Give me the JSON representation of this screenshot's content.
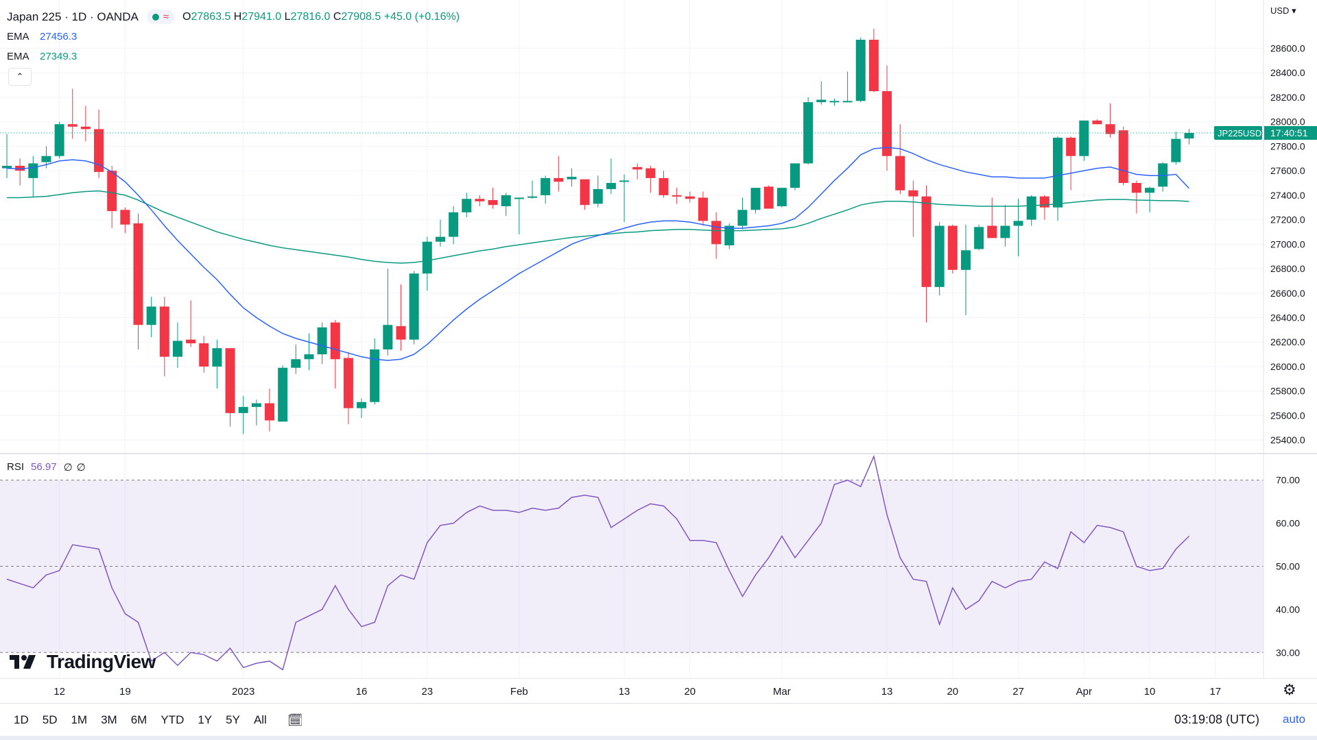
{
  "header": {
    "symbol": "Japan 225 · 1D · OANDA",
    "ohlc": {
      "o_label": "O",
      "o": "27863.5",
      "h_label": "H",
      "h": "27941.0",
      "l_label": "L",
      "l": "27816.0",
      "c_label": "C",
      "c": "27908.5",
      "change": "+45.0 (+0.16%)"
    },
    "status_color": "#089981"
  },
  "indicators": {
    "ema1": {
      "label": "EMA",
      "value": "27456.3",
      "color": "#2962ff"
    },
    "ema2": {
      "label": "EMA",
      "value": "27349.3",
      "color": "#089981"
    },
    "rsi": {
      "label": "RSI",
      "value": "56.97",
      "extra1": "∅",
      "extra2": "∅",
      "color": "#7e57c2"
    }
  },
  "price_scale": {
    "currency": "USD"
  },
  "symbol_tag": {
    "ticker": "JP225USD",
    "countdown": "17:40:51"
  },
  "brand": {
    "name": "TradingView"
  },
  "toolbar": {
    "timeframes": [
      "1D",
      "5D",
      "1M",
      "3M",
      "6M",
      "YTD",
      "1Y",
      "5Y",
      "All"
    ],
    "clock": "03:19:08 (UTC)",
    "auto": "auto"
  },
  "chart_data": {
    "type": "candlestick",
    "ylim": [
      25300,
      28950
    ],
    "yticks": [
      25400,
      25600,
      25800,
      26000,
      26200,
      26400,
      26600,
      26800,
      27000,
      27200,
      27400,
      27600,
      27800,
      28000,
      28200,
      28400,
      28600
    ],
    "ytick_labels": [
      "25400.0",
      "25600.0",
      "25800.0",
      "26000.0",
      "26200.0",
      "26400.0",
      "26600.0",
      "26800.0",
      "27000.0",
      "27200.0",
      "27400.0",
      "27600.0",
      "27800.0",
      "28000.0",
      "28200.0",
      "28400.0",
      "28600.0"
    ],
    "current_price": 27908.5,
    "colors": {
      "up": "#089981",
      "down": "#f23645",
      "ema_fast": "#2962ff",
      "ema_slow": "#089981",
      "rsi": "#7e57c2"
    },
    "x_labels": [
      {
        "i": 4,
        "text": "12"
      },
      {
        "i": 9,
        "text": "19"
      },
      {
        "i": 18,
        "text": "2023"
      },
      {
        "i": 27,
        "text": "16"
      },
      {
        "i": 32,
        "text": "23"
      },
      {
        "i": 39,
        "text": "Feb"
      },
      {
        "i": 47,
        "text": "13"
      },
      {
        "i": 52,
        "text": "20"
      },
      {
        "i": 59,
        "text": "Mar"
      },
      {
        "i": 67,
        "text": "13"
      },
      {
        "i": 72,
        "text": "20"
      },
      {
        "i": 77,
        "text": "27"
      },
      {
        "i": 82,
        "text": "Apr"
      },
      {
        "i": 87,
        "text": "10"
      },
      {
        "i": 92,
        "text": "17"
      }
    ],
    "candles": [
      {
        "o": 27620,
        "h": 27900,
        "l": 27540,
        "c": 27640
      },
      {
        "o": 27640,
        "h": 27700,
        "l": 27480,
        "c": 27600
      },
      {
        "o": 27540,
        "h": 27720,
        "l": 27380,
        "c": 27660
      },
      {
        "o": 27670,
        "h": 27800,
        "l": 27620,
        "c": 27720
      },
      {
        "o": 27720,
        "h": 28000,
        "l": 27700,
        "c": 27980
      },
      {
        "o": 27980,
        "h": 28270,
        "l": 27860,
        "c": 27960
      },
      {
        "o": 27960,
        "h": 28130,
        "l": 27840,
        "c": 27940
      },
      {
        "o": 27940,
        "h": 28100,
        "l": 27540,
        "c": 27590
      },
      {
        "o": 27600,
        "h": 27640,
        "l": 27130,
        "c": 27270
      },
      {
        "o": 27280,
        "h": 27300,
        "l": 27090,
        "c": 27160
      },
      {
        "o": 27170,
        "h": 27250,
        "l": 26140,
        "c": 26340
      },
      {
        "o": 26340,
        "h": 26570,
        "l": 26240,
        "c": 26490
      },
      {
        "o": 26490,
        "h": 26570,
        "l": 25920,
        "c": 26080
      },
      {
        "o": 26080,
        "h": 26360,
        "l": 25990,
        "c": 26210
      },
      {
        "o": 26220,
        "h": 26540,
        "l": 26160,
        "c": 26190
      },
      {
        "o": 26190,
        "h": 26250,
        "l": 25950,
        "c": 26000
      },
      {
        "o": 26000,
        "h": 26220,
        "l": 25820,
        "c": 26150
      },
      {
        "o": 26150,
        "h": 26150,
        "l": 25510,
        "c": 25620
      },
      {
        "o": 25620,
        "h": 25760,
        "l": 25450,
        "c": 25670
      },
      {
        "o": 25670,
        "h": 25730,
        "l": 25520,
        "c": 25700
      },
      {
        "o": 25700,
        "h": 25820,
        "l": 25470,
        "c": 25560
      },
      {
        "o": 25550,
        "h": 26010,
        "l": 25550,
        "c": 25990
      },
      {
        "o": 25990,
        "h": 26180,
        "l": 25940,
        "c": 26060
      },
      {
        "o": 26060,
        "h": 26270,
        "l": 25970,
        "c": 26100
      },
      {
        "o": 26100,
        "h": 26360,
        "l": 26020,
        "c": 26320
      },
      {
        "o": 26360,
        "h": 26380,
        "l": 25820,
        "c": 26060
      },
      {
        "o": 26070,
        "h": 26120,
        "l": 25530,
        "c": 25660
      },
      {
        "o": 25660,
        "h": 25740,
        "l": 25580,
        "c": 25710
      },
      {
        "o": 25710,
        "h": 26230,
        "l": 25690,
        "c": 26140
      },
      {
        "o": 26140,
        "h": 26800,
        "l": 26090,
        "c": 26340
      },
      {
        "o": 26330,
        "h": 26670,
        "l": 26130,
        "c": 26220
      },
      {
        "o": 26220,
        "h": 26780,
        "l": 26180,
        "c": 26760
      },
      {
        "o": 26760,
        "h": 27060,
        "l": 26620,
        "c": 27020
      },
      {
        "o": 27020,
        "h": 27200,
        "l": 26980,
        "c": 27060
      },
      {
        "o": 27060,
        "h": 27310,
        "l": 27000,
        "c": 27260
      },
      {
        "o": 27260,
        "h": 27420,
        "l": 27220,
        "c": 27370
      },
      {
        "o": 27370,
        "h": 27400,
        "l": 27310,
        "c": 27350
      },
      {
        "o": 27360,
        "h": 27460,
        "l": 27290,
        "c": 27320
      },
      {
        "o": 27310,
        "h": 27420,
        "l": 27230,
        "c": 27400
      },
      {
        "o": 27380,
        "h": 27380,
        "l": 27080,
        "c": 27380
      },
      {
        "o": 27380,
        "h": 27520,
        "l": 27370,
        "c": 27390
      },
      {
        "o": 27400,
        "h": 27560,
        "l": 27330,
        "c": 27540
      },
      {
        "o": 27540,
        "h": 27720,
        "l": 27430,
        "c": 27510
      },
      {
        "o": 27530,
        "h": 27620,
        "l": 27470,
        "c": 27550
      },
      {
        "o": 27530,
        "h": 27530,
        "l": 27280,
        "c": 27320
      },
      {
        "o": 27330,
        "h": 27560,
        "l": 27300,
        "c": 27450
      },
      {
        "o": 27450,
        "h": 27700,
        "l": 27410,
        "c": 27500
      },
      {
        "o": 27520,
        "h": 27570,
        "l": 27180,
        "c": 27520
      },
      {
        "o": 27630,
        "h": 27660,
        "l": 27530,
        "c": 27610
      },
      {
        "o": 27620,
        "h": 27640,
        "l": 27420,
        "c": 27540
      },
      {
        "o": 27540,
        "h": 27600,
        "l": 27380,
        "c": 27400
      },
      {
        "o": 27400,
        "h": 27460,
        "l": 27330,
        "c": 27390
      },
      {
        "o": 27390,
        "h": 27430,
        "l": 27340,
        "c": 27370
      },
      {
        "o": 27380,
        "h": 27430,
        "l": 27150,
        "c": 27190
      },
      {
        "o": 27190,
        "h": 27260,
        "l": 26880,
        "c": 27000
      },
      {
        "o": 26990,
        "h": 27170,
        "l": 26960,
        "c": 27150
      },
      {
        "o": 27150,
        "h": 27380,
        "l": 27120,
        "c": 27280
      },
      {
        "o": 27280,
        "h": 27460,
        "l": 27250,
        "c": 27460
      },
      {
        "o": 27470,
        "h": 27480,
        "l": 27290,
        "c": 27290
      },
      {
        "o": 27310,
        "h": 27460,
        "l": 27300,
        "c": 27460
      },
      {
        "o": 27460,
        "h": 27660,
        "l": 27440,
        "c": 27660
      },
      {
        "o": 27660,
        "h": 28200,
        "l": 27650,
        "c": 28160
      },
      {
        "o": 28160,
        "h": 28330,
        "l": 28140,
        "c": 28180
      },
      {
        "o": 28170,
        "h": 28190,
        "l": 28130,
        "c": 28170
      },
      {
        "o": 28170,
        "h": 28410,
        "l": 28160,
        "c": 28170
      },
      {
        "o": 28170,
        "h": 28690,
        "l": 28160,
        "c": 28670
      },
      {
        "o": 28670,
        "h": 28760,
        "l": 28240,
        "c": 28250
      },
      {
        "o": 28250,
        "h": 28460,
        "l": 27600,
        "c": 27720
      },
      {
        "o": 27720,
        "h": 27980,
        "l": 27410,
        "c": 27440
      },
      {
        "o": 27440,
        "h": 27520,
        "l": 27060,
        "c": 27390
      },
      {
        "o": 27390,
        "h": 27480,
        "l": 26360,
        "c": 26650
      },
      {
        "o": 26650,
        "h": 27180,
        "l": 26580,
        "c": 27150
      },
      {
        "o": 27150,
        "h": 27160,
        "l": 26760,
        "c": 26790
      },
      {
        "o": 26790,
        "h": 27160,
        "l": 26420,
        "c": 26950
      },
      {
        "o": 26960,
        "h": 27160,
        "l": 26950,
        "c": 27140
      },
      {
        "o": 27150,
        "h": 27380,
        "l": 27080,
        "c": 27050
      },
      {
        "o": 27050,
        "h": 27320,
        "l": 26980,
        "c": 27150
      },
      {
        "o": 27150,
        "h": 27370,
        "l": 26900,
        "c": 27190
      },
      {
        "o": 27200,
        "h": 27400,
        "l": 27150,
        "c": 27390
      },
      {
        "o": 27390,
        "h": 27400,
        "l": 27200,
        "c": 27300
      },
      {
        "o": 27300,
        "h": 27880,
        "l": 27190,
        "c": 27870
      },
      {
        "o": 27870,
        "h": 27880,
        "l": 27440,
        "c": 27720
      },
      {
        "o": 27720,
        "h": 28010,
        "l": 27680,
        "c": 28010
      },
      {
        "o": 28010,
        "h": 28020,
        "l": 27980,
        "c": 27980
      },
      {
        "o": 27980,
        "h": 28150,
        "l": 27870,
        "c": 27900
      },
      {
        "o": 27930,
        "h": 27960,
        "l": 27480,
        "c": 27500
      },
      {
        "o": 27500,
        "h": 27520,
        "l": 27250,
        "c": 27420
      },
      {
        "o": 27420,
        "h": 27470,
        "l": 27260,
        "c": 27460
      },
      {
        "o": 27470,
        "h": 27670,
        "l": 27430,
        "c": 27660
      },
      {
        "o": 27670,
        "h": 27920,
        "l": 27650,
        "c": 27860
      },
      {
        "o": 27863.5,
        "h": 27941,
        "l": 27816,
        "c": 27908.5
      }
    ],
    "ema_fast": [
      27620,
      27615,
      27625,
      27650,
      27680,
      27690,
      27680,
      27650,
      27590,
      27510,
      27400,
      27280,
      27150,
      27030,
      26920,
      26810,
      26710,
      26590,
      26480,
      26400,
      26330,
      26270,
      26230,
      26200,
      26170,
      26140,
      26110,
      26080,
      26060,
      26050,
      26060,
      26100,
      26180,
      26280,
      26380,
      26470,
      26550,
      26620,
      26690,
      26760,
      26820,
      26880,
      26940,
      27000,
      27040,
      27070,
      27100,
      27130,
      27160,
      27180,
      27190,
      27190,
      27180,
      27160,
      27140,
      27130,
      27130,
      27140,
      27150,
      27170,
      27210,
      27300,
      27410,
      27520,
      27620,
      27730,
      27780,
      27790,
      27780,
      27740,
      27690,
      27650,
      27620,
      27590,
      27570,
      27550,
      27550,
      27540,
      27540,
      27540,
      27560,
      27580,
      27600,
      27620,
      27630,
      27600,
      27570,
      27560,
      27560,
      27570,
      27456
    ],
    "ema_slow": [
      27380,
      27380,
      27385,
      27390,
      27405,
      27420,
      27430,
      27435,
      27420,
      27400,
      27360,
      27310,
      27260,
      27220,
      27180,
      27140,
      27100,
      27070,
      27040,
      27015,
      26990,
      26970,
      26955,
      26940,
      26925,
      26910,
      26895,
      26875,
      26860,
      26850,
      26845,
      26850,
      26865,
      26885,
      26905,
      26925,
      26945,
      26960,
      26980,
      26995,
      27010,
      27025,
      27040,
      27055,
      27065,
      27075,
      27085,
      27095,
      27100,
      27110,
      27115,
      27120,
      27120,
      27115,
      27110,
      27110,
      27110,
      27115,
      27120,
      27125,
      27140,
      27170,
      27210,
      27245,
      27280,
      27320,
      27340,
      27350,
      27350,
      27345,
      27335,
      27325,
      27320,
      27315,
      27310,
      27310,
      27310,
      27310,
      27315,
      27320,
      27330,
      27340,
      27350,
      27360,
      27365,
      27365,
      27360,
      27358,
      27355,
      27355,
      27349
    ],
    "rsi": {
      "ylim": [
        24,
        76
      ],
      "bands": [
        30,
        50,
        70
      ],
      "tick_labels": [
        "30.00",
        "40.00",
        "50.00",
        "60.00",
        "70.00"
      ],
      "ticks": [
        30,
        40,
        50,
        60,
        70
      ],
      "values": [
        47,
        46,
        45,
        48,
        49,
        55,
        54.5,
        54,
        45,
        39,
        37,
        28,
        30,
        27,
        30,
        29.5,
        28,
        31,
        26.5,
        27.5,
        28,
        26,
        37,
        38.5,
        40,
        45.5,
        40,
        36,
        37,
        45.5,
        48,
        47,
        55.5,
        59.5,
        60,
        62.5,
        64,
        63,
        63,
        62.5,
        63.5,
        63,
        63.5,
        66,
        66.5,
        66,
        59,
        61,
        63,
        64.5,
        64,
        61,
        56,
        56,
        55.5,
        49,
        43,
        48,
        52,
        57,
        52,
        56,
        60,
        69,
        70,
        68.5,
        75.5,
        62,
        52,
        47,
        46.5,
        36.5,
        45,
        40,
        42,
        46.5,
        45,
        46.5,
        47,
        51,
        49.5,
        58,
        55.5,
        59.5,
        59,
        58,
        50,
        49,
        49.5,
        54,
        57
      ]
    }
  }
}
